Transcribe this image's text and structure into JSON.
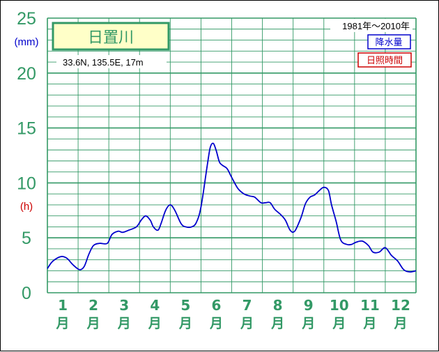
{
  "chart_data": {
    "type": "line",
    "title": "日置川",
    "location": "33.6N,  135.5E,  17m",
    "period": "1981年～2010年",
    "legend": [
      {
        "label": "降水量",
        "color": "#0000cc"
      },
      {
        "label": "日照時間",
        "color": "#cc0000"
      }
    ],
    "y_units": {
      "precip": "(mm)",
      "sunshine": "(h)"
    },
    "y_ticks": [
      "0",
      "5",
      "10",
      "15",
      "20",
      "25"
    ],
    "ylim": [
      0,
      25
    ],
    "months": [
      {
        "num": "1",
        "unit": "月"
      },
      {
        "num": "2",
        "unit": "月"
      },
      {
        "num": "3",
        "unit": "月"
      },
      {
        "num": "4",
        "unit": "月"
      },
      {
        "num": "5",
        "unit": "月"
      },
      {
        "num": "6",
        "unit": "月"
      },
      {
        "num": "7",
        "unit": "月"
      },
      {
        "num": "8",
        "unit": "月"
      },
      {
        "num": "9",
        "unit": "月"
      },
      {
        "num": "10",
        "unit": "月"
      },
      {
        "num": "11",
        "unit": "月"
      },
      {
        "num": "12",
        "unit": "月"
      }
    ],
    "xlim": [
      0.5,
      12.5
    ],
    "series": [
      {
        "name": "降水量",
        "color": "#0000cc",
        "x": [
          0.5,
          0.65,
          0.85,
          1.0,
          1.15,
          1.35,
          1.55,
          1.7,
          1.85,
          2.0,
          2.2,
          2.45,
          2.6,
          2.8,
          2.95,
          3.15,
          3.4,
          3.55,
          3.7,
          3.85,
          3.95,
          4.1,
          4.2,
          4.35,
          4.5,
          4.65,
          4.85,
          5.0,
          5.2,
          5.35,
          5.5,
          5.7,
          5.8,
          5.9,
          6.0,
          6.1,
          6.2,
          6.35,
          6.5,
          6.7,
          6.9,
          7.1,
          7.25,
          7.45,
          7.6,
          7.75,
          7.9,
          8.1,
          8.25,
          8.4,
          8.55,
          8.75,
          8.9,
          9.05,
          9.2,
          9.35,
          9.5,
          9.65,
          9.75,
          9.9,
          10.05,
          10.25,
          10.4,
          10.55,
          10.75,
          10.95,
          11.1,
          11.3,
          11.5,
          11.7,
          11.9,
          12.1,
          12.3,
          12.5
        ],
        "values": [
          2.2,
          2.8,
          3.2,
          3.3,
          3.1,
          2.5,
          2.1,
          2.4,
          3.5,
          4.3,
          4.5,
          4.5,
          5.3,
          5.6,
          5.5,
          5.7,
          6.0,
          6.6,
          7.0,
          6.6,
          6.0,
          5.7,
          6.3,
          7.5,
          8.0,
          7.5,
          6.3,
          6.0,
          6.0,
          6.4,
          7.8,
          11.5,
          13.2,
          13.6,
          12.9,
          11.9,
          11.6,
          11.3,
          10.5,
          9.5,
          9.0,
          8.8,
          8.7,
          8.2,
          8.2,
          8.2,
          7.6,
          7.1,
          6.6,
          5.7,
          5.6,
          6.8,
          8.1,
          8.7,
          8.9,
          9.3,
          9.6,
          9.3,
          8.0,
          6.5,
          4.8,
          4.4,
          4.4,
          4.6,
          4.7,
          4.3,
          3.7,
          3.7,
          4.1,
          3.4,
          2.9,
          2.1,
          1.9,
          2.0
        ]
      }
    ]
  }
}
